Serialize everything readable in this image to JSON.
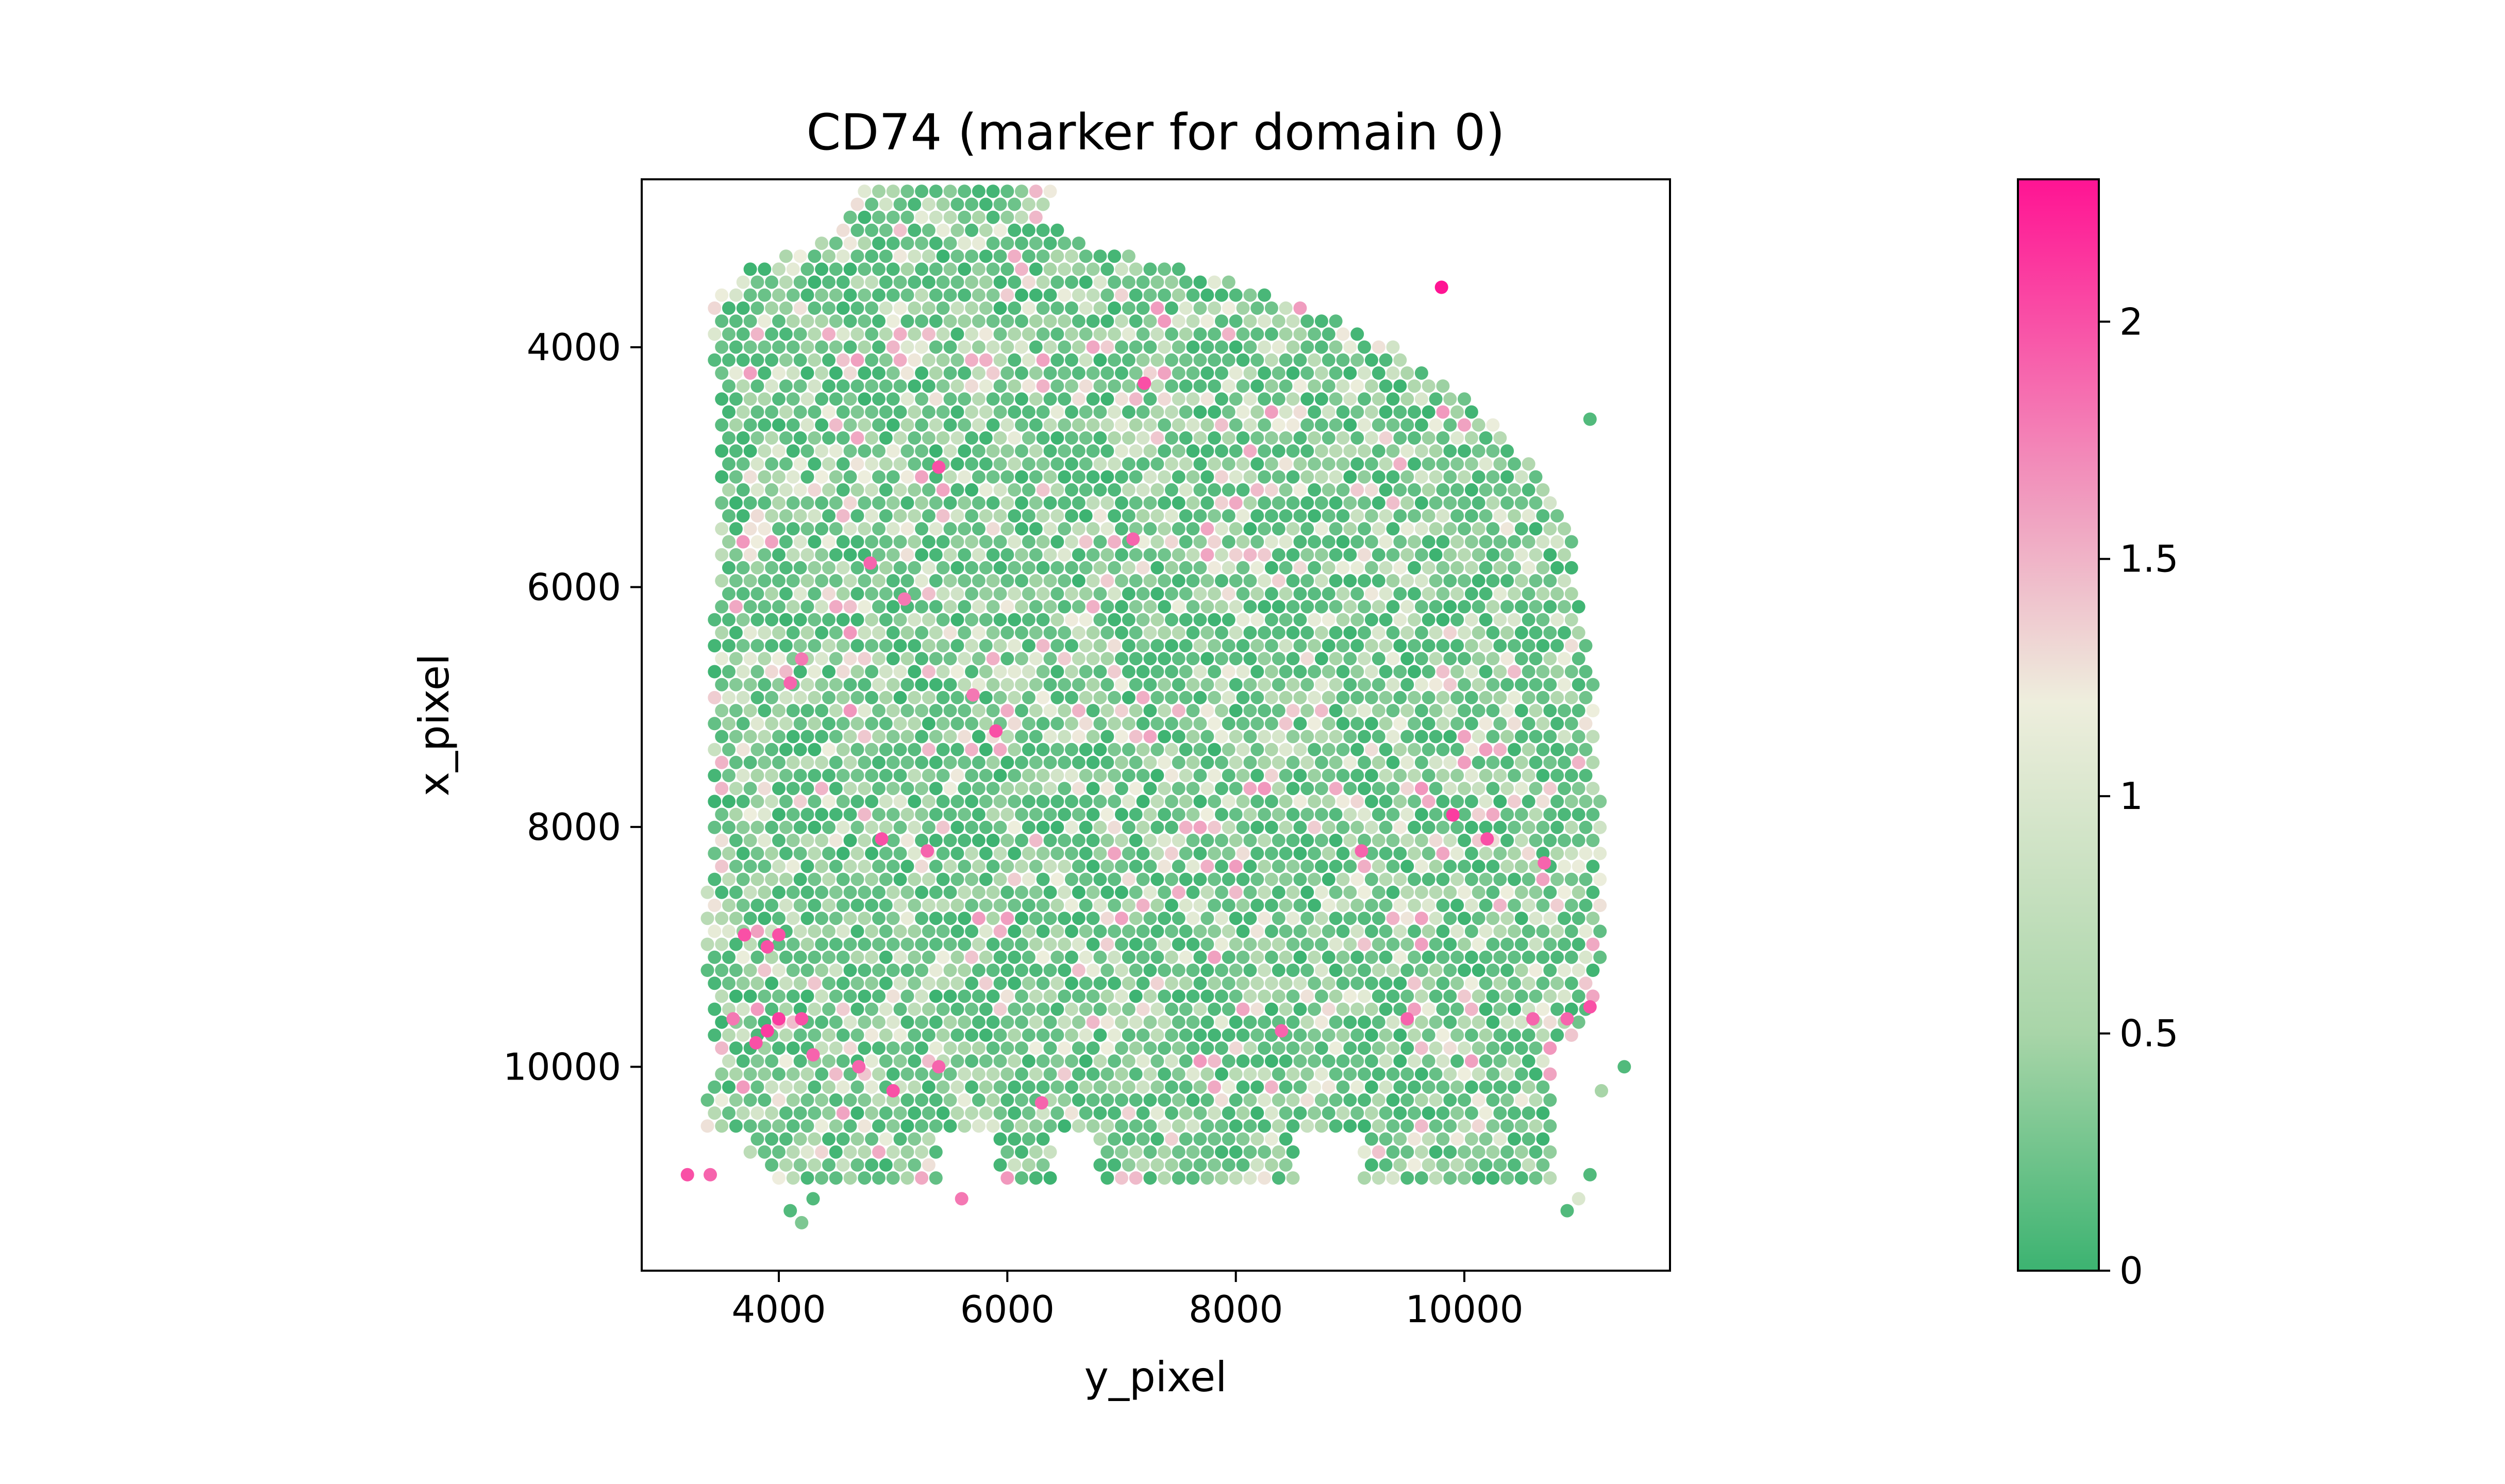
{
  "chart_data": {
    "type": "scatter",
    "title": "CD74 (marker for domain 0)",
    "xlabel": "y_pixel",
    "ylabel": "x_pixel",
    "xlim": [
      2800,
      11800
    ],
    "ylim": [
      11700,
      2600
    ],
    "y_inverted": true,
    "grid": false,
    "legend": "none",
    "x_ticks": [
      4000,
      6000,
      8000,
      10000
    ],
    "x_tick_labels": [
      "4000",
      "6000",
      "8000",
      "10000"
    ],
    "y_ticks": [
      4000,
      6000,
      8000,
      10000
    ],
    "y_tick_labels": [
      "4000",
      "6000",
      "8000",
      "10000"
    ],
    "spot_spacing": 125,
    "colorbar": {
      "min": 0,
      "max": 2.3,
      "ticks": [
        0,
        0.5,
        1,
        1.5,
        2
      ],
      "tick_labels": [
        "0",
        "0.5",
        "1",
        "1.5",
        "2"
      ],
      "colors": [
        "#3cb371",
        "#a8d5a8",
        "#eeeedd",
        "#f0a0c0",
        "#ff1493"
      ],
      "color_stops": [
        0,
        0.5,
        1.2,
        1.6,
        2.3
      ]
    },
    "tissue_boundary_left": [
      [
        2700,
        4750
      ],
      [
        3100,
        4400
      ],
      [
        3300,
        3750
      ],
      [
        3600,
        3400
      ],
      [
        4000,
        3400
      ],
      [
        4400,
        3500
      ],
      [
        5000,
        3450
      ],
      [
        6000,
        3450
      ],
      [
        7000,
        3400
      ],
      [
        8000,
        3400
      ],
      [
        9000,
        3350
      ],
      [
        10000,
        3450
      ],
      [
        10500,
        3300
      ],
      [
        10800,
        3800
      ],
      [
        11000,
        4100
      ]
    ],
    "tissue_boundary_right": [
      [
        2700,
        6450
      ],
      [
        2900,
        6300
      ],
      [
        3100,
        6600
      ],
      [
        3500,
        8200
      ],
      [
        4000,
        9400
      ],
      [
        4500,
        10150
      ],
      [
        5000,
        10600
      ],
      [
        5500,
        10950
      ],
      [
        6000,
        11000
      ],
      [
        6500,
        11100
      ],
      [
        7000,
        11150
      ],
      [
        8000,
        11200
      ],
      [
        9000,
        11200
      ],
      [
        9500,
        11150
      ],
      [
        10000,
        10750
      ],
      [
        10500,
        10800
      ],
      [
        11000,
        11000
      ]
    ],
    "dominant_range": [
      0.0,
      0.75
    ],
    "high_expression_spots": [
      {
        "x": 9800,
        "y": 3500,
        "value": 2.3
      },
      {
        "x": 7200,
        "y": 4300,
        "value": 2.0
      },
      {
        "x": 5400,
        "y": 5000,
        "value": 2.0
      },
      {
        "x": 7100,
        "y": 5600,
        "value": 1.9
      },
      {
        "x": 4800,
        "y": 5800,
        "value": 1.9
      },
      {
        "x": 5100,
        "y": 6100,
        "value": 1.8
      },
      {
        "x": 4200,
        "y": 6600,
        "value": 1.8
      },
      {
        "x": 4100,
        "y": 6800,
        "value": 1.9
      },
      {
        "x": 5700,
        "y": 6900,
        "value": 1.8
      },
      {
        "x": 5900,
        "y": 7200,
        "value": 2.0
      },
      {
        "x": 9900,
        "y": 7900,
        "value": 2.1
      },
      {
        "x": 10200,
        "y": 8100,
        "value": 2.0
      },
      {
        "x": 10700,
        "y": 8300,
        "value": 1.9
      },
      {
        "x": 9100,
        "y": 8200,
        "value": 1.9
      },
      {
        "x": 5300,
        "y": 8200,
        "value": 1.9
      },
      {
        "x": 4900,
        "y": 8100,
        "value": 2.0
      },
      {
        "x": 3700,
        "y": 8900,
        "value": 2.0
      },
      {
        "x": 4000,
        "y": 8900,
        "value": 2.0
      },
      {
        "x": 3900,
        "y": 9000,
        "value": 2.0
      },
      {
        "x": 3600,
        "y": 9600,
        "value": 1.8
      },
      {
        "x": 4000,
        "y": 9600,
        "value": 2.1
      },
      {
        "x": 4200,
        "y": 9600,
        "value": 2.0
      },
      {
        "x": 3900,
        "y": 9700,
        "value": 2.1
      },
      {
        "x": 3800,
        "y": 9800,
        "value": 2.0
      },
      {
        "x": 4300,
        "y": 9900,
        "value": 1.9
      },
      {
        "x": 4700,
        "y": 10000,
        "value": 1.9
      },
      {
        "x": 5000,
        "y": 10200,
        "value": 2.0
      },
      {
        "x": 5400,
        "y": 10000,
        "value": 1.9
      },
      {
        "x": 6300,
        "y": 10300,
        "value": 1.9
      },
      {
        "x": 8400,
        "y": 9700,
        "value": 1.9
      },
      {
        "x": 9500,
        "y": 9600,
        "value": 1.9
      },
      {
        "x": 10600,
        "y": 9600,
        "value": 1.9
      },
      {
        "x": 10900,
        "y": 9600,
        "value": 1.9
      },
      {
        "x": 11100,
        "y": 9500,
        "value": 2.0
      },
      {
        "x": 5600,
        "y": 11100,
        "value": 1.8
      },
      {
        "x": 3200,
        "y": 10900,
        "value": 2.0
      },
      {
        "x": 3400,
        "y": 10900,
        "value": 1.9
      }
    ],
    "outlier_spots": [
      {
        "x": 11100,
        "y": 4600,
        "value": 0.1
      },
      {
        "x": 11400,
        "y": 10000,
        "value": 0.1
      },
      {
        "x": 11200,
        "y": 10200,
        "value": 0.5
      },
      {
        "x": 11100,
        "y": 10900,
        "value": 0.1
      },
      {
        "x": 11000,
        "y": 11100,
        "value": 1.0
      },
      {
        "x": 10900,
        "y": 11200,
        "value": 0.1
      },
      {
        "x": 4100,
        "y": 11200,
        "value": 0.1
      },
      {
        "x": 4200,
        "y": 11300,
        "value": 0.3
      },
      {
        "x": 4300,
        "y": 11100,
        "value": 0.1
      }
    ]
  }
}
